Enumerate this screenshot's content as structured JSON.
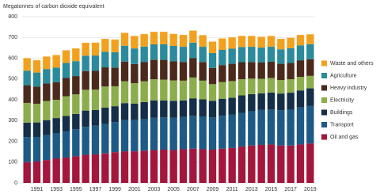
{
  "chart_data": {
    "type": "stacked_bar",
    "y_label": "Megatonnes of carbon dioxide equivalent",
    "categories": [
      null,
      "1991",
      null,
      "1993",
      null,
      "1995",
      null,
      "1997",
      null,
      "1999",
      null,
      "2001",
      null,
      "2003",
      null,
      "2005",
      null,
      "2007",
      null,
      "2009",
      null,
      "2011",
      null,
      "2013",
      null,
      "2015",
      null,
      "2017",
      null,
      "2019"
    ],
    "ylim": [
      0,
      800
    ],
    "yticks": [
      0,
      100,
      200,
      300,
      400,
      500,
      600,
      700,
      800
    ],
    "grid": true,
    "series": [
      {
        "name": "Oil and gas",
        "color": "#a3173d",
        "values": [
          100,
          103,
          110,
          118,
          122,
          128,
          135,
          137,
          142,
          148,
          152,
          152,
          155,
          158,
          160,
          158,
          162,
          165,
          162,
          160,
          165,
          168,
          175,
          180,
          183,
          185,
          180,
          180,
          185,
          190
        ]
      },
      {
        "name": "Transport",
        "color": "#1d5a86",
        "values": [
          120,
          118,
          120,
          122,
          126,
          130,
          135,
          138,
          142,
          145,
          150,
          150,
          152,
          155,
          155,
          155,
          155,
          158,
          158,
          155,
          158,
          160,
          162,
          165,
          168,
          168,
          170,
          172,
          178,
          180
        ]
      },
      {
        "name": "Buildings",
        "color": "#142f47",
        "values": [
          70,
          70,
          72,
          72,
          74,
          74,
          78,
          76,
          78,
          76,
          82,
          80,
          82,
          84,
          82,
          82,
          80,
          84,
          82,
          80,
          82,
          82,
          84,
          82,
          80,
          82,
          80,
          82,
          82,
          85
        ]
      },
      {
        "name": "Electricity",
        "color": "#8cad4b",
        "values": [
          95,
          90,
          92,
          88,
          95,
          94,
          100,
          98,
          102,
          96,
          105,
          98,
          100,
          102,
          100,
          98,
          95,
          100,
          90,
          80,
          80,
          80,
          78,
          75,
          70,
          70,
          65,
          65,
          65,
          60
        ]
      },
      {
        "name": "Heavy industry",
        "color": "#4b2a1b",
        "values": [
          85,
          82,
          84,
          85,
          88,
          88,
          90,
          90,
          92,
          90,
          95,
          92,
          92,
          93,
          95,
          92,
          90,
          93,
          90,
          78,
          82,
          83,
          82,
          80,
          78,
          78,
          78,
          78,
          80,
          80
        ]
      },
      {
        "name": "Agriculture",
        "color": "#2b8a9b",
        "values": [
          70,
          68,
          70,
          70,
          72,
          72,
          74,
          74,
          75,
          74,
          76,
          75,
          75,
          75,
          75,
          74,
          73,
          75,
          73,
          72,
          73,
          73,
          73,
          73,
          72,
          72,
          70,
          71,
          72,
          72
        ]
      },
      {
        "name": "Waste and others",
        "color": "#f2a11f",
        "values": [
          60,
          59,
          60,
          60,
          61,
          61,
          62,
          62,
          62,
          61,
          62,
          60,
          60,
          60,
          60,
          58,
          57,
          58,
          56,
          55,
          55,
          54,
          53,
          52,
          52,
          52,
          50,
          50,
          50,
          48
        ]
      }
    ]
  }
}
